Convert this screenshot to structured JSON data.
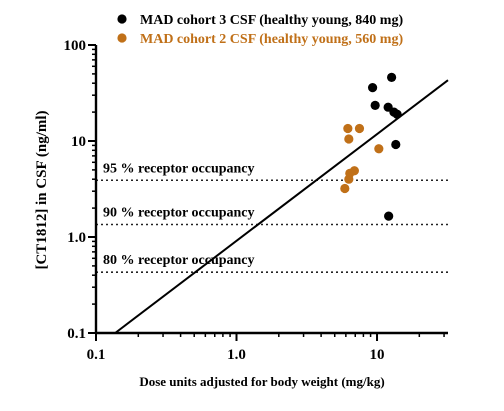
{
  "chart_data": {
    "type": "scatter",
    "title": "",
    "xlabel": "Dose units adjusted for body weight (mg/kg)",
    "ylabel": "[CT1812] in CSF (ng/ml)",
    "x_scale": "log",
    "y_scale": "log",
    "xlim": [
      0.1,
      32
    ],
    "ylim": [
      0.1,
      100
    ],
    "x_ticks": [
      {
        "value": 0.1,
        "label": "0.1"
      },
      {
        "value": 1,
        "label": "1.0"
      },
      {
        "value": 10,
        "label": "10"
      }
    ],
    "y_ticks": [
      {
        "value": 0.1,
        "label": "0.1"
      },
      {
        "value": 1,
        "label": "1.0"
      },
      {
        "value": 10,
        "label": "10"
      },
      {
        "value": 100,
        "label": "100"
      }
    ],
    "grid": false,
    "legend_position": "top",
    "series": [
      {
        "name": "MAD cohort 3 CSF (healthy young, 840 mg)",
        "color": "#000000",
        "points": [
          {
            "x": 9.3,
            "y": 36
          },
          {
            "x": 9.7,
            "y": 23.5
          },
          {
            "x": 12.0,
            "y": 22.5
          },
          {
            "x": 12.7,
            "y": 46
          },
          {
            "x": 13.2,
            "y": 20
          },
          {
            "x": 13.9,
            "y": 19
          },
          {
            "x": 13.6,
            "y": 9.2
          },
          {
            "x": 12.1,
            "y": 1.65
          }
        ]
      },
      {
        "name": "MAD cohort 2 CSF (healthy young, 560 mg)",
        "color": "#c07018",
        "points": [
          {
            "x": 6.2,
            "y": 13.5
          },
          {
            "x": 7.5,
            "y": 13.5
          },
          {
            "x": 6.3,
            "y": 10.5
          },
          {
            "x": 10.3,
            "y": 8.3
          },
          {
            "x": 6.9,
            "y": 4.9
          },
          {
            "x": 6.4,
            "y": 4.6
          },
          {
            "x": 6.3,
            "y": 4.0
          },
          {
            "x": 5.9,
            "y": 3.2
          }
        ]
      }
    ],
    "fit_line": {
      "color": "#000000",
      "x": [
        0.137,
        32
      ],
      "y": [
        0.1,
        43
      ]
    },
    "reference_lines": [
      {
        "y": 3.9,
        "label": "95 %  receptor occupancy"
      },
      {
        "y": 1.35,
        "label": "90 %  receptor occupancy"
      },
      {
        "y": 0.43,
        "label": "80 %  receptor occupancy"
      }
    ]
  }
}
